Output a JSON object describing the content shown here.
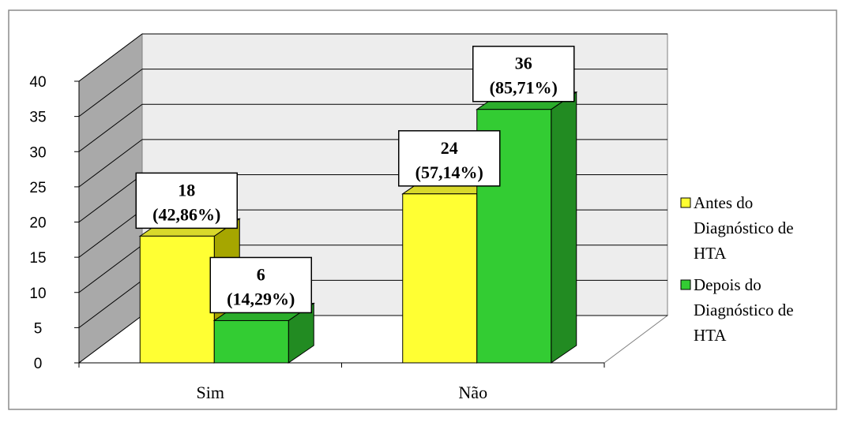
{
  "chart_data": {
    "type": "bar",
    "categories": [
      "Sim",
      "Não"
    ],
    "series": [
      {
        "name": "Antes do Diagnóstico de HTA",
        "values": [
          18,
          24
        ],
        "labels": [
          "18",
          "24"
        ],
        "percents": [
          "(42,86%)",
          "(57,14%)"
        ],
        "color": "#FFFF33"
      },
      {
        "name": "Depois do Diagnóstico de HTA",
        "values": [
          6,
          36
        ],
        "labels": [
          "6",
          "36"
        ],
        "percents": [
          "(14,29%)",
          "(85,71%)"
        ],
        "color": "#33CC33"
      }
    ],
    "ylim": [
      0,
      40
    ],
    "yticks": [
      "0",
      "5",
      "10",
      "15",
      "20",
      "25",
      "30",
      "35",
      "40"
    ],
    "grid": true,
    "legend_position": "right",
    "legend": [
      {
        "lines": [
          "Antes do",
          "Diagnóstico de",
          "HTA"
        ]
      },
      {
        "lines": [
          "Depois do",
          "Diagnóstico de",
          "HTA"
        ]
      }
    ],
    "colors": {
      "yellow": "#FFFF33",
      "yellow_side": "#A6A600",
      "green": "#33CC33",
      "green_side": "#228B22",
      "wall": "#EDEDED",
      "wall_left": "#A9A9A9",
      "grid": "#000000"
    }
  }
}
